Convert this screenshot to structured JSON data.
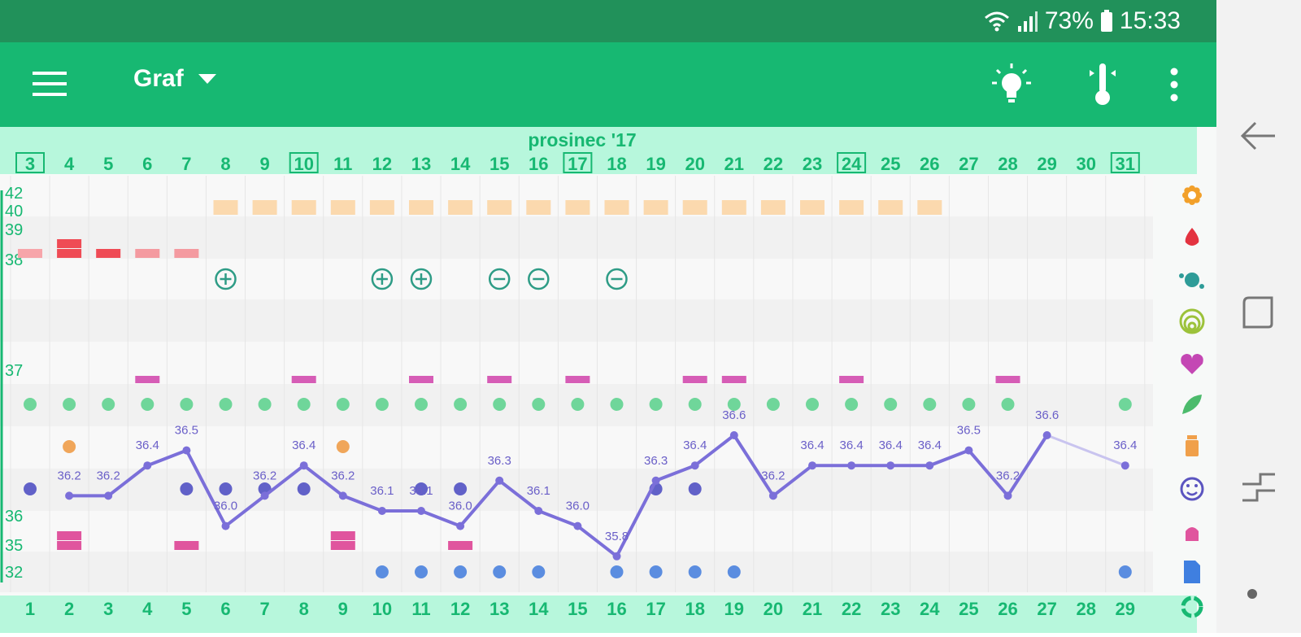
{
  "status_bar": {
    "battery": "73%",
    "time": "15:33"
  },
  "app_bar": {
    "view_title": "Graf",
    "menu_icon": "menu-icon",
    "actions": [
      "lightbulb-icon",
      "thermometer-icon",
      "more-vert-icon"
    ]
  },
  "colors": {
    "status_bar": "#21915a",
    "app_bar": "#17b872",
    "accent": "#17b872",
    "date_strip": "#b7f7dc",
    "temperature_line": "#7b6fd9",
    "fertile_days": "#fbd9ae",
    "period": "#ef4b55",
    "intercourse": "#d65db6",
    "leaf": "#6fd69a",
    "pill": "#f0a65a",
    "mood": "#6161c8",
    "symptom": "#e0559e",
    "note": "#5b8de0"
  },
  "chart_data": {
    "type": "line",
    "title": "prosinec '17",
    "dates": [
      "3",
      "4",
      "5",
      "6",
      "7",
      "8",
      "9",
      "10",
      "11",
      "12",
      "13",
      "14",
      "15",
      "16",
      "17",
      "18",
      "19",
      "20",
      "21",
      "22",
      "23",
      "24",
      "25",
      "26",
      "27",
      "28",
      "29",
      "30",
      "31"
    ],
    "boxed_dates": [
      "3",
      "10",
      "17",
      "24",
      "31"
    ],
    "cycle_days": [
      "1",
      "2",
      "3",
      "4",
      "5",
      "6",
      "7",
      "8",
      "9",
      "10",
      "11",
      "12",
      "13",
      "14",
      "15",
      "16",
      "17",
      "18",
      "19",
      "20",
      "21",
      "22",
      "23",
      "24",
      "25",
      "26",
      "27",
      "28",
      "29"
    ],
    "left_axis_ticks": [
      "42",
      "40",
      "39",
      "38",
      "37",
      "36",
      "35",
      "32"
    ],
    "temperatures": [
      null,
      36.2,
      36.2,
      36.4,
      36.5,
      36.0,
      36.2,
      36.4,
      36.2,
      36.1,
      36.1,
      36.0,
      36.3,
      36.1,
      36.0,
      35.8,
      36.3,
      36.4,
      36.6,
      36.2,
      36.4,
      36.4,
      36.4,
      36.4,
      36.5,
      36.2,
      36.6,
      null,
      36.4
    ],
    "temperature_range": [
      35.6,
      36.8
    ],
    "fertile_days": [
      "8",
      "9",
      "10",
      "11",
      "12",
      "13",
      "14",
      "15",
      "16",
      "17",
      "18",
      "19",
      "20",
      "21",
      "22",
      "23",
      "24",
      "25",
      "26"
    ],
    "period": [
      {
        "date": "3",
        "type": "faded"
      },
      {
        "date": "4",
        "type": "heavy"
      },
      {
        "date": "5",
        "type": "medium"
      },
      {
        "date": "6",
        "type": "spotting"
      },
      {
        "date": "7",
        "type": "spotting"
      }
    ],
    "tests": [
      {
        "date": "8",
        "result": "positive"
      },
      {
        "date": "12",
        "result": "positive"
      },
      {
        "date": "13",
        "result": "positive"
      },
      {
        "date": "15",
        "result": "negative"
      },
      {
        "date": "16",
        "result": "negative"
      },
      {
        "date": "18",
        "result": "negative"
      }
    ],
    "intercourse": [
      "6",
      "10",
      "13",
      "15",
      "17",
      "20",
      "21",
      "24",
      "28"
    ],
    "leaf": [
      "3",
      "4",
      "5",
      "6",
      "7",
      "8",
      "9",
      "10",
      "11",
      "12",
      "13",
      "14",
      "15",
      "16",
      "17",
      "18",
      "19",
      "20",
      "21",
      "22",
      "23",
      "24",
      "25",
      "26",
      "27",
      "28",
      "31"
    ],
    "pills": [
      "4",
      "11"
    ],
    "mood": [
      "3",
      "7",
      "8",
      "9",
      "10",
      "13",
      "14",
      "19",
      "20"
    ],
    "symptoms": [
      {
        "date": "4",
        "type": "double"
      },
      {
        "date": "7",
        "type": "single"
      },
      {
        "date": "11",
        "type": "double"
      },
      {
        "date": "14",
        "type": "single"
      }
    ],
    "notes": [
      "12",
      "13",
      "14",
      "15",
      "16",
      "18",
      "19",
      "20",
      "21",
      "31"
    ],
    "row_icons": [
      "flower-icon",
      "drop-icon",
      "splash-icon",
      "cervix-icon",
      "heart-icon",
      "leaf-icon",
      "pill-bottle-icon",
      "smiley-icon",
      "bell-icon",
      "note-icon",
      "cycle-icon"
    ]
  }
}
